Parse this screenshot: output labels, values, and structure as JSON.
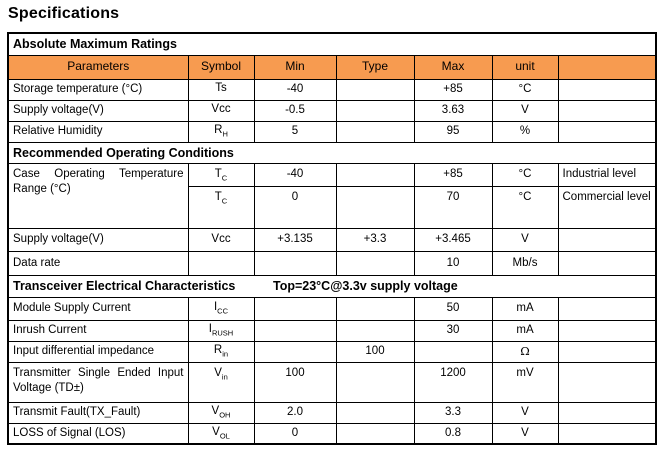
{
  "page_title": "Specifications",
  "colors": {
    "header_bg": "#F79B50",
    "border": "#000000",
    "text": "#000000"
  },
  "table": {
    "columns": [
      "Parameters",
      "Symbol",
      "Min",
      "Type",
      "Max",
      "unit",
      ""
    ],
    "sections": [
      {
        "title": "Absolute Maximum Ratings",
        "title2": "",
        "rows": [
          {
            "parameter": "Storage temperature (°C)",
            "symbol": {
              "base": "Ts",
              "sub": ""
            },
            "min": "-40",
            "type": "",
            "max": "+85",
            "unit": "°C",
            "note": ""
          },
          {
            "parameter": "Supply voltage(V)",
            "symbol": {
              "base": "Vcc",
              "sub": ""
            },
            "min": "-0.5",
            "type": "",
            "max": "3.63",
            "unit": "V",
            "note": ""
          },
          {
            "parameter": "Relative Humidity",
            "symbol": {
              "base": "R",
              "sub": "H"
            },
            "min": "5",
            "type": "",
            "max": "95",
            "unit": "%",
            "note": ""
          }
        ]
      },
      {
        "title": "Recommended Operating Conditions",
        "title2": "",
        "rows": [
          {
            "parameter": "Case Operating Temperature Range (°C)",
            "param_rowspan": 2,
            "symbol": {
              "base": "T",
              "sub": "C"
            },
            "min": "-40",
            "type": "",
            "max": "+85",
            "unit": "°C",
            "note": "Industrial level"
          },
          {
            "parameter": null,
            "symbol": {
              "base": "T",
              "sub": "C"
            },
            "min": "0",
            "type": "",
            "max": "70",
            "unit": "°C",
            "note": "Commercial level"
          },
          {
            "parameter": "Supply voltage(V)",
            "symbol": {
              "base": "Vcc",
              "sub": ""
            },
            "min": "+3.135",
            "type": "+3.3",
            "max": "+3.465",
            "unit": "V",
            "note": ""
          },
          {
            "parameter": "Data rate",
            "symbol": {
              "base": "",
              "sub": ""
            },
            "min": "",
            "type": "",
            "max": "10",
            "unit": "Mb/s",
            "note": ""
          }
        ]
      },
      {
        "title": "Transceiver Electrical Characteristics",
        "title2": "Top=23°C@3.3v supply voltage",
        "rows": [
          {
            "parameter": "Module Supply Current",
            "symbol": {
              "base": "I",
              "sub": "CC"
            },
            "min": "",
            "type": "",
            "max": "50",
            "unit": "mA",
            "note": ""
          },
          {
            "parameter": "Inrush Current",
            "symbol": {
              "base": "I",
              "sub": "RUSH"
            },
            "min": "",
            "type": "",
            "max": "30",
            "unit": "mA",
            "note": ""
          },
          {
            "parameter": "Input differential impedance",
            "symbol": {
              "base": "R",
              "sub": "in"
            },
            "min": "",
            "type": "100",
            "max": "",
            "unit": "Ω",
            "note": ""
          },
          {
            "parameter": "Transmitter Single Ended Input Voltage (TD±)",
            "symbol": {
              "base": "V",
              "sub": "in"
            },
            "min": "100",
            "type": "",
            "max": "1200",
            "unit": "mV",
            "note": ""
          },
          {
            "parameter": "Transmit Fault(TX_Fault)",
            "symbol": {
              "base": "V",
              "sub": "OH"
            },
            "min": "2.0",
            "type": "",
            "max": "3.3",
            "unit": "V",
            "note": ""
          },
          {
            "parameter": "LOSS of Signal (LOS)",
            "symbol": {
              "base": "V",
              "sub": "OL"
            },
            "min": "0",
            "type": "",
            "max": "0.8",
            "unit": "V",
            "note": ""
          }
        ]
      }
    ]
  }
}
